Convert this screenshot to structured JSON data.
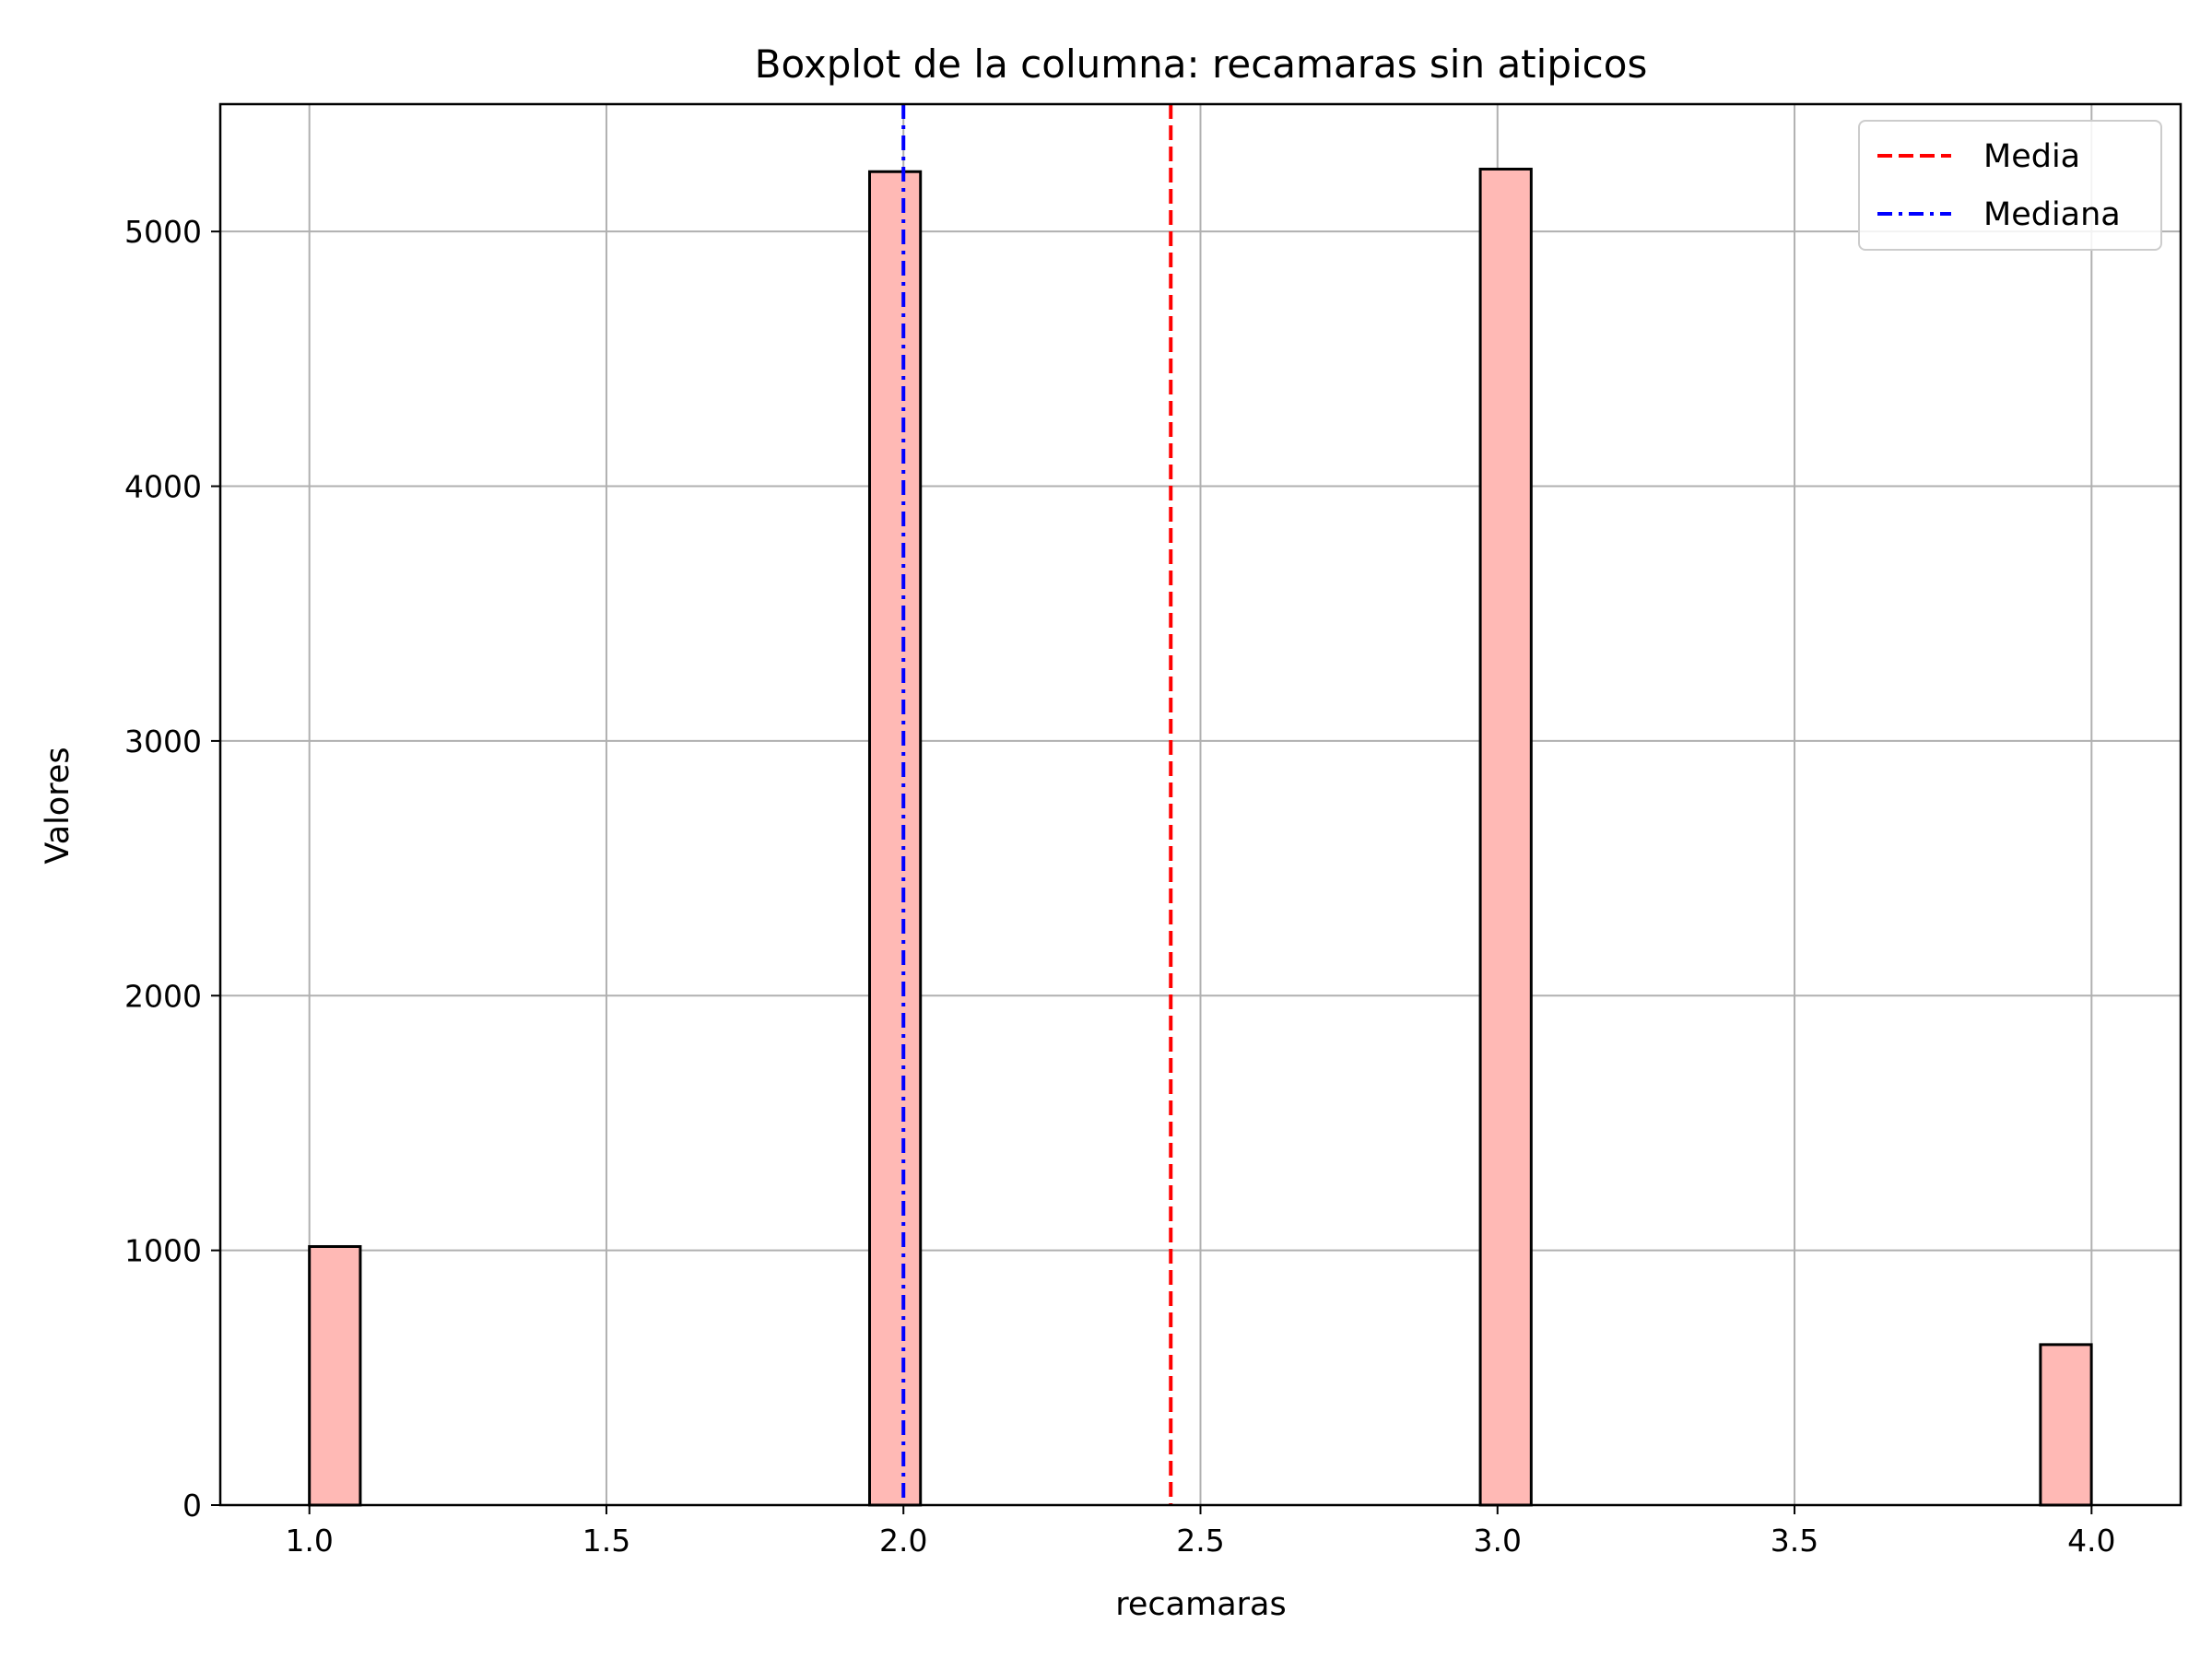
{
  "chart_data": {
    "type": "bar",
    "title": "Boxplot de la columna: recamaras sin atipicos",
    "xlabel": "recamaras",
    "ylabel": "Valores",
    "xlim": [
      0.85,
      4.15
    ],
    "ylim": [
      0,
      5500
    ],
    "bin_width": 0.0857,
    "x_ticks": [
      1.0,
      1.5,
      2.0,
      2.5,
      3.0,
      3.5,
      4.0
    ],
    "x_tick_labels": [
      "1.0",
      "1.5",
      "2.0",
      "2.5",
      "3.0",
      "3.5",
      "4.0"
    ],
    "y_ticks": [
      0,
      1000,
      2000,
      3000,
      4000,
      5000
    ],
    "y_tick_labels": [
      "0",
      "1000",
      "2000",
      "3000",
      "4000",
      "5000"
    ],
    "grid": true,
    "bars": [
      {
        "x_start": 1.0,
        "value": 1015
      },
      {
        "x_start": 1.943,
        "value": 5235
      },
      {
        "x_start": 2.971,
        "value": 5245
      },
      {
        "x_start": 3.914,
        "value": 630
      }
    ],
    "bar_color": "#ffb9b5",
    "reference_lines": [
      {
        "name": "Media",
        "x": 2.45,
        "color": "#ff0000",
        "style": "dashed"
      },
      {
        "name": "Mediana",
        "x": 2.0,
        "color": "#0000ff",
        "style": "dashdot"
      }
    ],
    "legend": {
      "placement": "top-right"
    }
  }
}
